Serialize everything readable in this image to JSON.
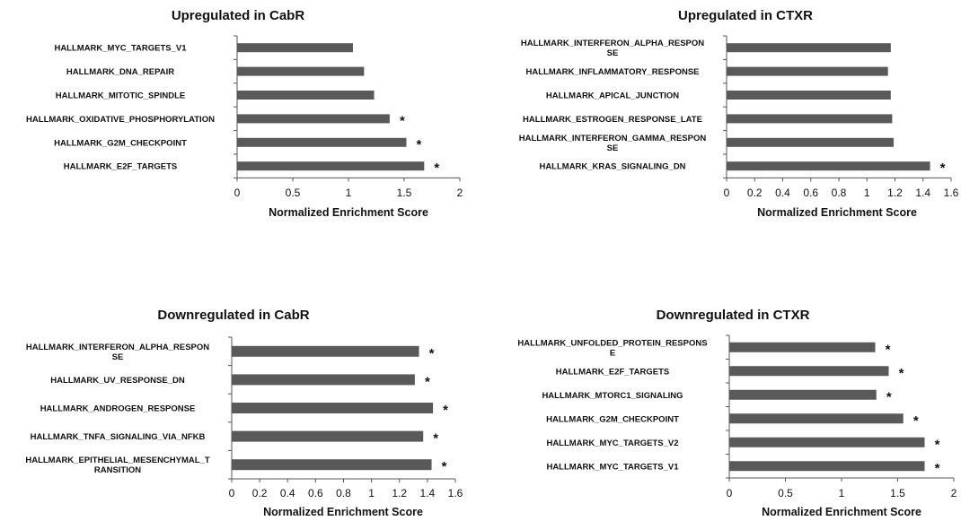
{
  "chart_data": [
    {
      "type": "bar",
      "orientation": "horizontal",
      "title": "Upregulated in CabR",
      "xlabel": "Normalized Enrichment Score",
      "ylabel": "",
      "xlim": [
        0,
        2
      ],
      "xticks": [
        "0",
        "0.5",
        "1",
        "1.5",
        "2"
      ],
      "bar_color": "#595959",
      "categories": [
        [
          "HALLMARK_MYC_TARGETS_V1"
        ],
        [
          "HALLMARK_DNA_REPAIR"
        ],
        [
          "HALLMARK_MITOTIC_SPINDLE"
        ],
        [
          "HALLMARK_OXIDATIVE_PHOSPHORYLATION"
        ],
        [
          "HALLMARK_G2M_CHECKPOINT"
        ],
        [
          "HALLMARK_E2F_TARGETS"
        ]
      ],
      "values": [
        1.04,
        1.14,
        1.23,
        1.37,
        1.52,
        1.68
      ],
      "significant": [
        false,
        false,
        false,
        true,
        true,
        true
      ]
    },
    {
      "type": "bar",
      "orientation": "horizontal",
      "title": "Upregulated in CTXR",
      "xlabel": "Normalized Enrichment Score",
      "ylabel": "",
      "xlim": [
        0,
        1.6
      ],
      "xticks": [
        "0",
        "0.2",
        "0.4",
        "0.6",
        "0.8",
        "1",
        "1.2",
        "1.4",
        "1.6"
      ],
      "bar_color": "#595959",
      "categories": [
        [
          "HALLMARK_INTERFERON_ALPHA_RESPON",
          "SE"
        ],
        [
          "HALLMARK_INFLAMMATORY_RESPONSE"
        ],
        [
          "HALLMARK_APICAL_JUNCTION"
        ],
        [
          "HALLMARK_ESTROGEN_RESPONSE_LATE"
        ],
        [
          "HALLMARK_INTERFERON_GAMMA_RESPON",
          "SE"
        ],
        [
          "HALLMARK_KRAS_SIGNALING_DN"
        ]
      ],
      "values": [
        1.17,
        1.15,
        1.17,
        1.18,
        1.19,
        1.45
      ],
      "significant": [
        false,
        false,
        false,
        false,
        false,
        true
      ]
    },
    {
      "type": "bar",
      "orientation": "horizontal",
      "title": "Downregulated in CabR",
      "xlabel": "Normalized Enrichment Score",
      "ylabel": "",
      "xlim": [
        0,
        1.6
      ],
      "xticks": [
        "0",
        "0.2",
        "0.4",
        "0.6",
        "0.8",
        "1",
        "1.2",
        "1.4",
        "1.6"
      ],
      "bar_color": "#595959",
      "categories": [
        [
          "HALLMARK_INTERFERON_ALPHA_RESPON",
          "SE"
        ],
        [
          "HALLMARK_UV_RESPONSE_DN"
        ],
        [
          "HALLMARK_ANDROGEN_RESPONSE"
        ],
        [
          "HALLMARK_TNFA_SIGNALING_VIA_NFKB"
        ],
        [
          "HALLMARK_EPITHELIAL_MESENCHYMAL_T",
          "RANSITION"
        ]
      ],
      "values": [
        1.34,
        1.31,
        1.44,
        1.37,
        1.43
      ],
      "significant": [
        true,
        true,
        true,
        true,
        true
      ]
    },
    {
      "type": "bar",
      "orientation": "horizontal",
      "title": "Downregulated in CTXR",
      "xlabel": "Normalized Enrichment Score",
      "ylabel": "",
      "xlim": [
        0,
        2
      ],
      "xticks": [
        "0",
        "0.5",
        "1",
        "1.5",
        "2"
      ],
      "bar_color": "#595959",
      "categories": [
        [
          "HALLMARK_UNFOLDED_PROTEIN_RESPONS",
          "E"
        ],
        [
          "HALLMARK_E2F_TARGETS"
        ],
        [
          "HALLMARK_MTORC1_SIGNALING"
        ],
        [
          "HALLMARK_G2M_CHECKPOINT"
        ],
        [
          "HALLMARK_MYC_TARGETS_V2"
        ],
        [
          "HALLMARK_MYC_TARGETS_V1"
        ]
      ],
      "values": [
        1.3,
        1.42,
        1.31,
        1.55,
        1.74,
        1.74
      ],
      "significant": [
        true,
        true,
        true,
        true,
        true,
        true
      ]
    }
  ],
  "significance_marker": "*"
}
